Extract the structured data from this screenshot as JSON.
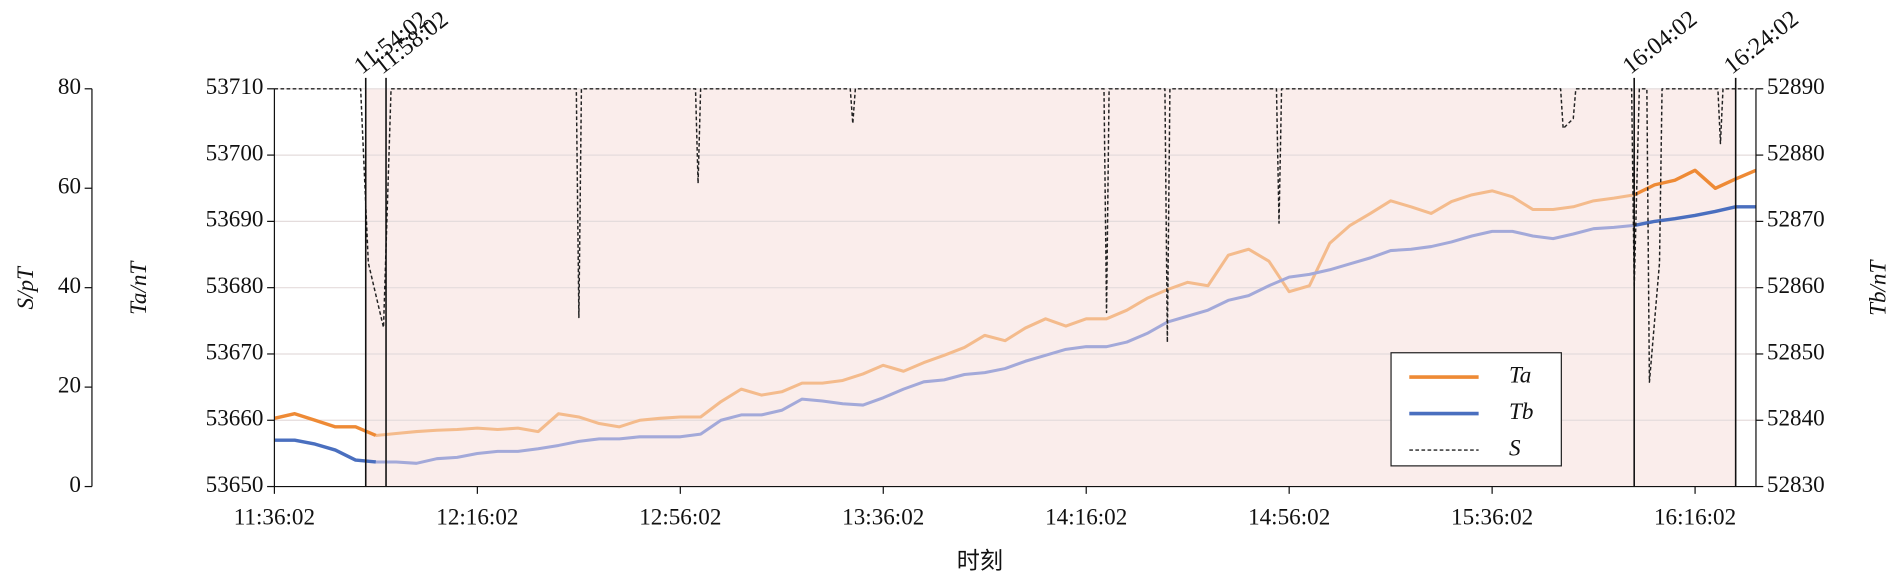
{
  "chart_data": {
    "type": "line",
    "xlabel": "时刻",
    "ylabel_s": "S/pT",
    "ylabel": "Ta/nT",
    "y2label": "Tb/nT",
    "xlim": [
      0,
      292
    ],
    "xticks": [
      {
        "value": 0,
        "label": "11:36:02"
      },
      {
        "value": 40,
        "label": "12:16:02"
      },
      {
        "value": 80,
        "label": "12:56:02"
      },
      {
        "value": 120,
        "label": "13:36:02"
      },
      {
        "value": 160,
        "label": "14:16:02"
      },
      {
        "value": 200,
        "label": "14:56:02"
      },
      {
        "value": 240,
        "label": "15:36:02"
      },
      {
        "value": 280,
        "label": "16:16:02"
      }
    ],
    "ylim": [
      53650,
      53710
    ],
    "yticks": [
      53650,
      53660,
      53670,
      53680,
      53690,
      53700,
      53710
    ],
    "y2lim": [
      52830,
      52890
    ],
    "y2ticks": [
      52830,
      52840,
      52850,
      52860,
      52870,
      52880,
      52890
    ],
    "y3lim": [
      0,
      80
    ],
    "y3ticks": [
      0,
      20,
      40,
      60,
      80
    ],
    "grid": true,
    "legend": "lower right",
    "shade": [
      18,
      288
    ],
    "faded_range": [
      22,
      268
    ],
    "annotations": [
      {
        "x": 18,
        "label": "11:54:02"
      },
      {
        "x": 22,
        "label": "11:58:02"
      },
      {
        "x": 268,
        "label": "16:04:02"
      },
      {
        "x": 288,
        "label": "16:24:02"
      }
    ],
    "x": [
      0,
      4,
      8,
      12,
      16,
      20,
      24,
      28,
      32,
      36,
      40,
      44,
      48,
      52,
      56,
      60,
      64,
      68,
      72,
      76,
      80,
      84,
      88,
      92,
      96,
      100,
      104,
      108,
      112,
      116,
      120,
      124,
      128,
      132,
      136,
      140,
      144,
      148,
      152,
      156,
      160,
      164,
      168,
      172,
      176,
      180,
      184,
      188,
      192,
      196,
      200,
      204,
      208,
      212,
      216,
      220,
      224,
      228,
      232,
      236,
      240,
      244,
      248,
      252,
      256,
      260,
      264,
      268,
      272,
      276,
      280,
      284,
      288,
      292
    ],
    "series": [
      {
        "name": "Ta",
        "color": "#ee8a35",
        "faded_color": "#f4bb8c",
        "axis": "y",
        "values": [
          53660.3,
          53661,
          53660,
          53659,
          53659,
          53657.7,
          53658,
          53658.3,
          53658.5,
          53658.6,
          53658.8,
          53658.6,
          53658.8,
          53658.3,
          53661,
          53660.5,
          53659.5,
          53659,
          53660,
          53660.3,
          53660.5,
          53660.5,
          53662.8,
          53664.7,
          53663.8,
          53664.3,
          53665.6,
          53665.6,
          53666,
          53667,
          53668.3,
          53667.4,
          53668.7,
          53669.8,
          53671,
          53672.8,
          53672,
          53673.9,
          53675.3,
          53674.2,
          53675.3,
          53675.3,
          53676.6,
          53678.4,
          53679.7,
          53680.8,
          53680.3,
          53684.9,
          53685.8,
          53684,
          53679.4,
          53680.3,
          53686.7,
          53689.4,
          53691.2,
          53693.1,
          53692.2,
          53691.2,
          53693,
          53694,
          53694.6,
          53693.7,
          53691.8,
          53691.8,
          53692.2,
          53693.1,
          53693.5,
          53694,
          53695.5,
          53696.2,
          53697.7,
          53695,
          53696.4,
          53697.7
        ]
      },
      {
        "name": "Tb",
        "color": "#4a6fbf",
        "faded_color": "#a3a9d9",
        "axis": "y2",
        "values": [
          52837,
          52837,
          52836.4,
          52835.5,
          52834,
          52833.7,
          52833.7,
          52833.5,
          52834.2,
          52834.4,
          52835,
          52835.3,
          52835.3,
          52835.7,
          52836.2,
          52836.8,
          52837.2,
          52837.2,
          52837.5,
          52837.5,
          52837.5,
          52837.9,
          52840,
          52840.8,
          52840.8,
          52841.5,
          52843.2,
          52842.9,
          52842.5,
          52842.3,
          52843.4,
          52844.7,
          52845.8,
          52846.1,
          52846.9,
          52847.2,
          52847.8,
          52848.9,
          52849.8,
          52850.7,
          52851.1,
          52851.1,
          52851.8,
          52853.1,
          52854.8,
          52855.7,
          52856.6,
          52858.1,
          52858.8,
          52860.3,
          52861.6,
          52862,
          52862.7,
          52863.6,
          52864.5,
          52865.6,
          52865.8,
          52866.2,
          52866.9,
          52867.8,
          52868.5,
          52868.5,
          52867.8,
          52867.4,
          52868.1,
          52868.9,
          52869.1,
          52869.4,
          52870,
          52870.4,
          52870.9,
          52871.5,
          52872.2,
          52872.2
        ]
      },
      {
        "name": "S",
        "color": "#222222",
        "axis": "y3",
        "x": [
          0,
          17,
          18.5,
          21.5,
          23,
          59.5,
          60,
          60.5,
          83,
          83.5,
          84,
          113.5,
          114,
          114.5,
          163.5,
          164,
          164.5,
          175.5,
          176,
          176.5,
          197.5,
          198,
          198.5,
          253.5,
          254,
          256,
          256.5,
          267.5,
          268,
          269,
          270.5,
          271,
          273,
          273.5,
          284.5,
          285,
          285.5,
          292
        ],
        "values": [
          80,
          80,
          45,
          32,
          80,
          80,
          34,
          80,
          80,
          61,
          80,
          80,
          73,
          80,
          80,
          35,
          80,
          80,
          29,
          80,
          80,
          53,
          80,
          80,
          72,
          74,
          80,
          80,
          40,
          80,
          80,
          21,
          45,
          80,
          80,
          69,
          80,
          80
        ]
      }
    ]
  }
}
